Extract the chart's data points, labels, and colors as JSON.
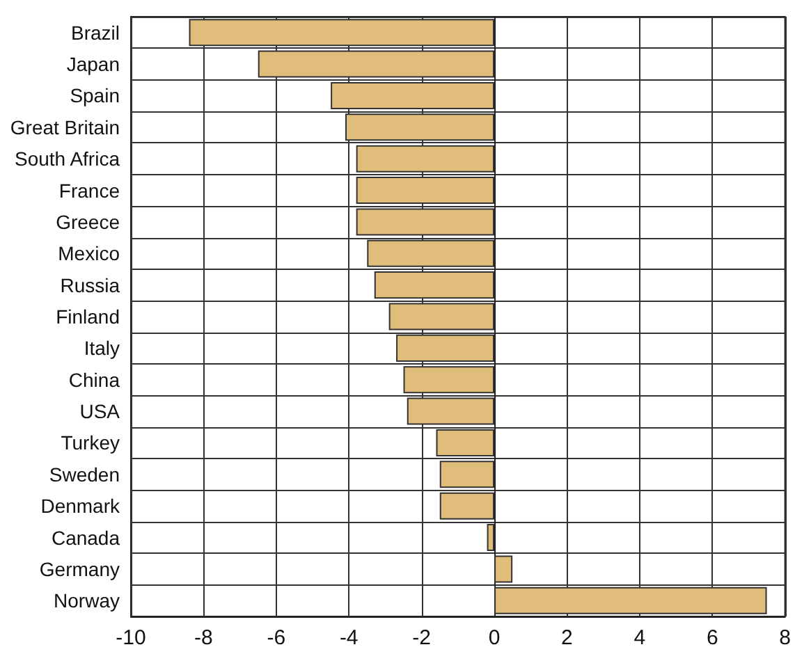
{
  "chart_data": {
    "type": "bar",
    "orientation": "horizontal",
    "categories": [
      "Brazil",
      "Japan",
      "Spain",
      "Great Britain",
      "South Africa",
      "France",
      "Greece",
      "Mexico",
      "Russia",
      "Finland",
      "Italy",
      "China",
      "USA",
      "Turkey",
      "Sweden",
      "Denmark",
      "Canada",
      "Germany",
      "Norway"
    ],
    "values": [
      -8.4,
      -6.5,
      -4.5,
      -4.1,
      -3.8,
      -3.8,
      -3.8,
      -3.5,
      -3.3,
      -2.9,
      -2.7,
      -2.5,
      -2.4,
      -1.6,
      -1.5,
      -1.5,
      -0.2,
      0.5,
      7.5
    ],
    "color": "#e0bd7b",
    "xlim": [
      -10,
      8
    ],
    "xticks": [
      -10,
      -8,
      -6,
      -4,
      -2,
      0,
      2,
      4,
      6,
      8
    ],
    "grid": true
  }
}
